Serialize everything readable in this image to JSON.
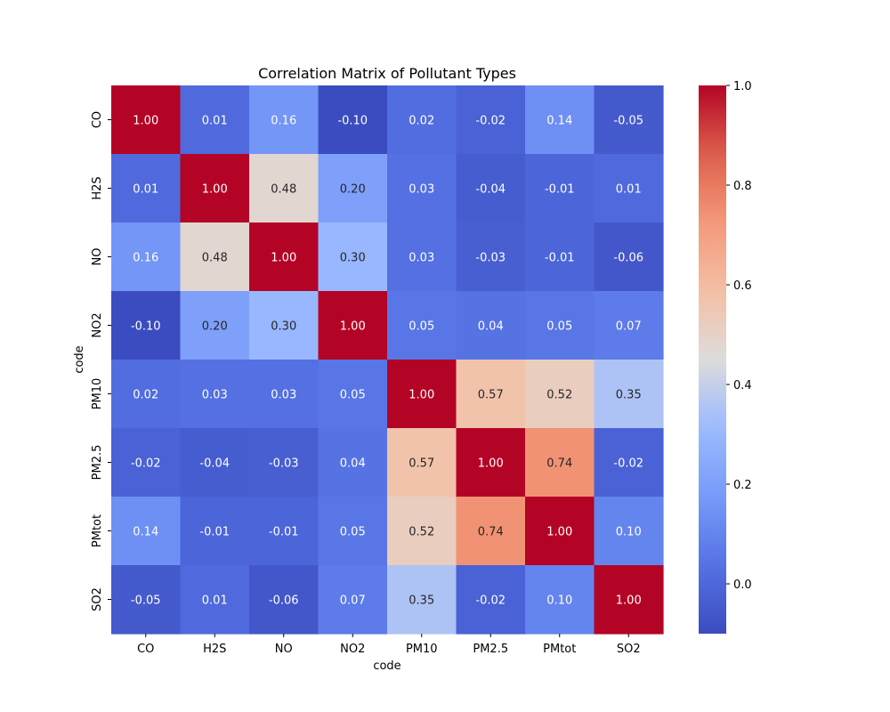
{
  "chart_data": {
    "type": "heatmap",
    "title": "Correlation Matrix of Pollutant Types",
    "xlabel": "code",
    "ylabel": "code",
    "x_categories": [
      "CO",
      "H2S",
      "NO",
      "NO2",
      "PM10",
      "PM2.5",
      "PMtot",
      "SO2"
    ],
    "y_categories": [
      "CO",
      "H2S",
      "NO",
      "NO2",
      "PM10",
      "PM2.5",
      "PMtot",
      "SO2"
    ],
    "values": [
      [
        1.0,
        0.01,
        0.16,
        -0.1,
        0.02,
        -0.02,
        0.14,
        -0.05
      ],
      [
        0.01,
        1.0,
        0.48,
        0.2,
        0.03,
        -0.04,
        -0.01,
        0.01
      ],
      [
        0.16,
        0.48,
        1.0,
        0.3,
        0.03,
        -0.03,
        -0.01,
        -0.06
      ],
      [
        -0.1,
        0.2,
        0.3,
        1.0,
        0.05,
        0.04,
        0.05,
        0.07
      ],
      [
        0.02,
        0.03,
        0.03,
        0.05,
        1.0,
        0.57,
        0.52,
        0.35
      ],
      [
        -0.02,
        -0.04,
        -0.03,
        0.04,
        0.57,
        1.0,
        0.74,
        -0.02
      ],
      [
        0.14,
        -0.01,
        -0.01,
        0.05,
        0.52,
        0.74,
        1.0,
        0.1
      ],
      [
        -0.05,
        0.01,
        -0.06,
        0.07,
        0.35,
        -0.02,
        0.1,
        1.0
      ]
    ],
    "value_format": "2 decimals",
    "colormap": "coolwarm",
    "colorbar": {
      "range": [
        -0.1,
        1.0
      ],
      "ticks": [
        "0.0",
        "0.2",
        "0.4",
        "0.6",
        "0.8",
        "1.0"
      ]
    }
  }
}
